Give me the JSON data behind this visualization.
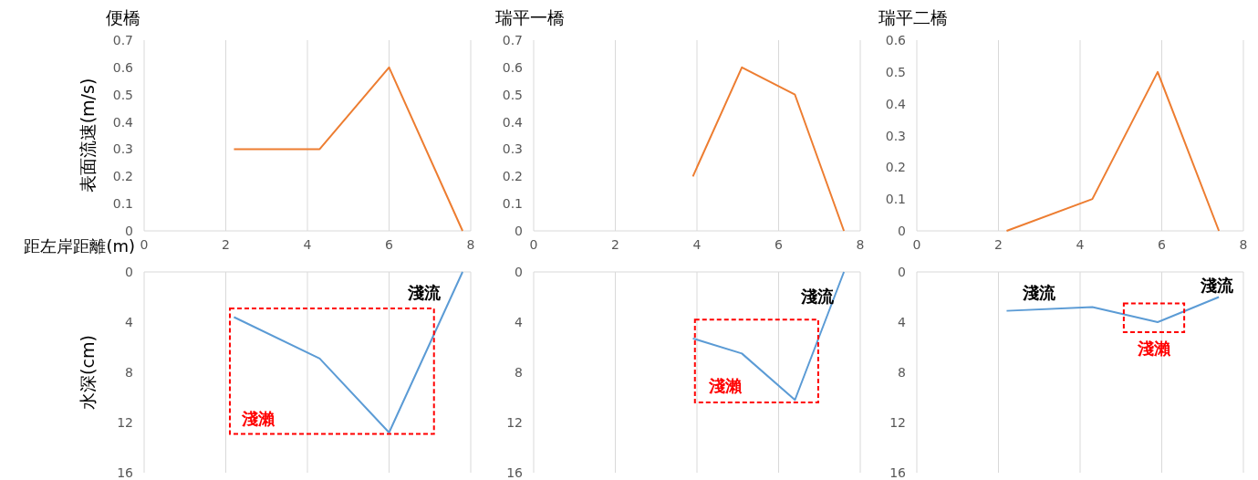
{
  "chart_data": [
    {
      "type": "line",
      "title": "便橋",
      "ylabel": "表面流速(m/s)",
      "xlabel": "距左岸距離(m)",
      "xlim": [
        0,
        8
      ],
      "xticks": [
        0,
        2,
        4,
        6,
        8
      ],
      "ylim": [
        0,
        0.7
      ],
      "yticks": [
        0,
        0.1,
        0.2,
        0.3,
        0.4,
        0.5,
        0.6,
        0.7
      ],
      "grid": "x",
      "x": [
        2.2,
        4.3,
        6,
        7.8
      ],
      "series": [
        {
          "color": "#ed7d31",
          "values": [
            0.3,
            0.3,
            0.6,
            0
          ]
        }
      ]
    },
    {
      "type": "line",
      "title": "瑞平一橋",
      "xlim": [
        0,
        8
      ],
      "xticks": [
        0,
        2,
        4,
        6,
        8
      ],
      "ylim": [
        0,
        0.7
      ],
      "yticks": [
        0,
        0.1,
        0.2,
        0.3,
        0.4,
        0.5,
        0.6,
        0.7
      ],
      "grid": "x",
      "x": [
        3.9,
        5.1,
        6.4,
        7.6
      ],
      "series": [
        {
          "color": "#ed7d31",
          "values": [
            0.2,
            0.6,
            0.5,
            0
          ]
        }
      ]
    },
    {
      "type": "line",
      "title": "瑞平二橋",
      "xlim": [
        0,
        8
      ],
      "xticks": [
        0,
        2,
        4,
        6,
        8
      ],
      "ylim": [
        0,
        0.6
      ],
      "yticks": [
        0,
        0.1,
        0.2,
        0.3,
        0.4,
        0.5,
        0.6
      ],
      "grid": "x",
      "x": [
        2.2,
        4.3,
        5.9,
        7.4
      ],
      "series": [
        {
          "color": "#ed7d31",
          "values": [
            0,
            0.1,
            0.5,
            0
          ]
        }
      ]
    },
    {
      "type": "line",
      "ylabel": "水深(cm)",
      "xlim": [
        0,
        8
      ],
      "xticks": [
        0,
        2,
        4,
        6,
        8
      ],
      "ylim": [
        16,
        0
      ],
      "yticks": [
        0,
        4,
        8,
        12,
        16
      ],
      "grid": "x",
      "tick_labels": "y",
      "x": [
        2.2,
        4.3,
        6,
        7.8
      ],
      "series": [
        {
          "color": "#5b9bd5",
          "values": [
            3.6,
            6.9,
            12.8,
            0
          ]
        }
      ],
      "annotations": [
        "淺流",
        "淺瀨"
      ]
    },
    {
      "type": "line",
      "xlim": [
        0,
        8
      ],
      "xticks": [
        0,
        2,
        4,
        6,
        8
      ],
      "ylim": [
        16,
        0
      ],
      "yticks": [
        0,
        4,
        8,
        12,
        16
      ],
      "grid": "x",
      "tick_labels": "y",
      "x": [
        3.9,
        5.1,
        6.4,
        7.6
      ],
      "series": [
        {
          "color": "#5b9bd5",
          "values": [
            5.3,
            6.5,
            10.2,
            0
          ]
        }
      ],
      "annotations": [
        "淺流",
        "淺瀨"
      ]
    },
    {
      "type": "line",
      "xlim": [
        0,
        8
      ],
      "xticks": [
        0,
        2,
        4,
        6,
        8
      ],
      "ylim": [
        16,
        0
      ],
      "yticks": [
        0,
        4,
        8,
        12,
        16
      ],
      "grid": "x",
      "tick_labels": "y",
      "x": [
        2.2,
        4.3,
        5.9,
        7.4
      ],
      "series": [
        {
          "color": "#5b9bd5",
          "values": [
            3.1,
            2.8,
            4,
            2
          ]
        }
      ],
      "annotations": [
        "淺流",
        "淺流",
        "淺瀨"
      ]
    }
  ]
}
